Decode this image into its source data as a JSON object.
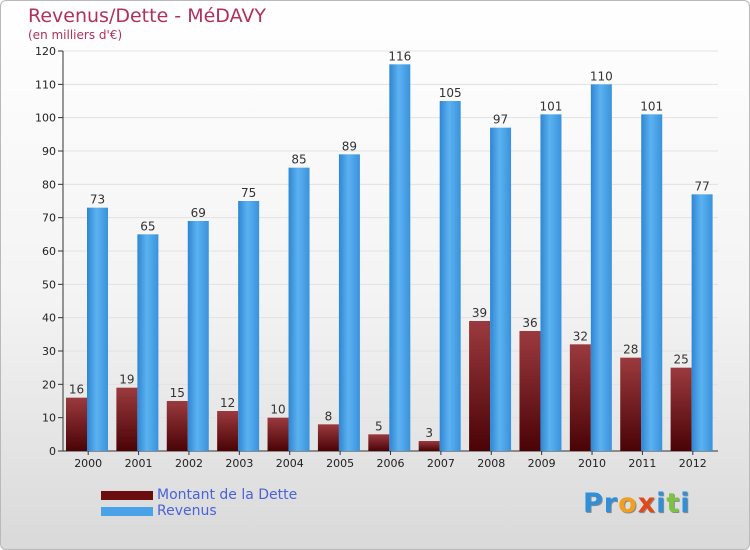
{
  "chart_data": {
    "type": "bar",
    "title": "Revenus/Dette - MéDAVY",
    "subtitle": "(en milliers d'€)",
    "categories": [
      "2000",
      "2001",
      "2002",
      "2003",
      "2004",
      "2005",
      "2006",
      "2007",
      "2008",
      "2009",
      "2010",
      "2011",
      "2012"
    ],
    "series": [
      {
        "name": "Montant de la Dette",
        "color": "#7a1f23",
        "values": [
          16,
          19,
          15,
          12,
          10,
          8,
          5,
          3,
          39,
          36,
          32,
          28,
          25
        ]
      },
      {
        "name": "Revenus",
        "color": "#4aa3e6",
        "values": [
          73,
          65,
          69,
          75,
          85,
          89,
          116,
          105,
          97,
          101,
          110,
          101,
          77
        ]
      }
    ],
    "ylim": [
      0,
      120
    ],
    "yticks": [
      0,
      10,
      20,
      30,
      40,
      50,
      60,
      70,
      80,
      90,
      100,
      110,
      120
    ],
    "grid": true,
    "legend_position": "bottom-left"
  },
  "logo": {
    "letters": [
      {
        "ch": "P",
        "color": "#2f8fd8"
      },
      {
        "ch": "r",
        "color": "#2f8fd8"
      },
      {
        "ch": "o",
        "color": "#f0a020"
      },
      {
        "ch": "x",
        "color": "#e04a1a"
      },
      {
        "ch": "i",
        "color": "#2f8fd8"
      },
      {
        "ch": "t",
        "color": "#7cc243"
      },
      {
        "ch": "i",
        "color": "#2f8fd8"
      }
    ]
  }
}
